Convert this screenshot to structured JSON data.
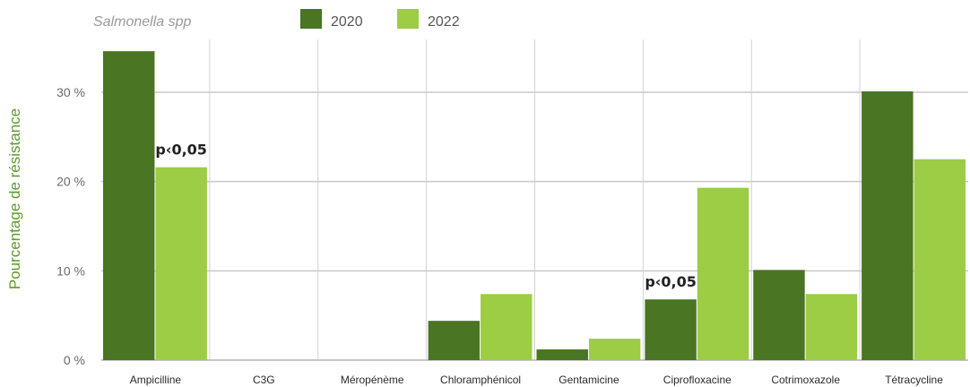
{
  "chart_data": {
    "type": "bar",
    "subtitle": "Salmonella spp",
    "ylabel": "Pourcentage de résistance",
    "ylim": [
      0,
      35
    ],
    "yticks": [
      0,
      10,
      20,
      30
    ],
    "ytick_labels": [
      "0 %",
      "10 %",
      "20 %",
      "30 %"
    ],
    "grid": true,
    "legend_position": "top",
    "categories": [
      "Ampicilline",
      "C3G",
      "Méropénème",
      "Chloramphénicol",
      "Gentamicine",
      "Ciprofloxacine",
      "Cotrimoxazole",
      "Tétracycline"
    ],
    "series": [
      {
        "name": "2020",
        "color": "#4a7523",
        "values": [
          34.6,
          0,
          0,
          4.4,
          1.2,
          6.8,
          10.1,
          30.1
        ]
      },
      {
        "name": "2022",
        "color": "#9dcc45",
        "values": [
          21.6,
          0,
          0,
          7.4,
          2.4,
          19.3,
          7.4,
          22.5
        ]
      }
    ],
    "annotations": [
      {
        "text": "p‹0,05",
        "category": "Ampicilline",
        "series": "2022"
      },
      {
        "text": "p‹0,05",
        "category": "Ciprofloxacine",
        "series": "2020"
      }
    ]
  }
}
